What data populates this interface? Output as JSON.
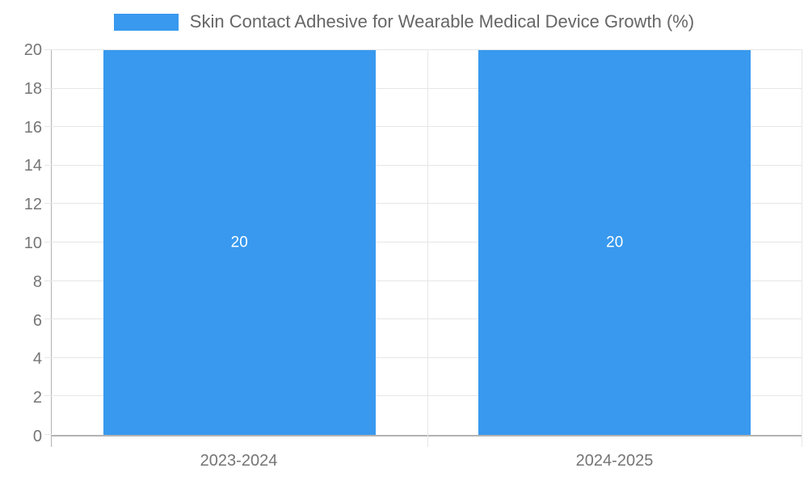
{
  "chart_data": {
    "type": "bar",
    "title": "Skin Contact Adhesive for Wearable Medical Device Growth (%)",
    "categories": [
      "2023-2024",
      "2024-2025"
    ],
    "values": [
      20,
      20
    ],
    "bar_value_labels": [
      "20",
      "20"
    ],
    "xlabel": "",
    "ylabel": "",
    "ylim": [
      0,
      20
    ],
    "ytick_step": 2,
    "yticks": [
      0,
      2,
      4,
      6,
      8,
      10,
      12,
      14,
      16,
      18,
      20
    ],
    "grid": true,
    "legend_position": "top",
    "legend_entries": [
      "Skin Contact Adhesive for Wearable Medical Device Growth (%)"
    ],
    "colors": {
      "bar": "#3899ef",
      "bar_label": "#ffffff",
      "axis_line": "#b3b3b3",
      "gridline": "#e6e6e6",
      "tick_label": "#757575",
      "legend_text": "#666666",
      "background": "#ffffff"
    }
  }
}
